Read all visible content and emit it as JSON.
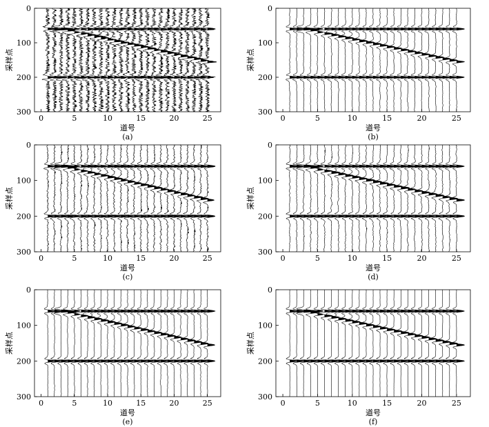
{
  "figure": {
    "panels": [
      {
        "caption": "(a)",
        "noise_level": 0.32,
        "smoothness": 0.15,
        "noise_seed": 11,
        "xlabel": "道号",
        "ylabel": "采样点"
      },
      {
        "caption": "(b)",
        "noise_level": 0.05,
        "smoothness": 0.85,
        "noise_seed": 23,
        "xlabel": "道号",
        "ylabel": "采样点"
      },
      {
        "caption": "(c)",
        "noise_level": 0.08,
        "smoothness": 0.7,
        "noise_seed": 37,
        "xlabel": "道号",
        "ylabel": "采样点"
      },
      {
        "caption": "(d)",
        "noise_level": 0.06,
        "smoothness": 0.8,
        "noise_seed": 41,
        "xlabel": "道号",
        "ylabel": "采样点"
      },
      {
        "caption": "(e)",
        "noise_level": 0.04,
        "smoothness": 0.85,
        "noise_seed": 53,
        "xlabel": "道号",
        "ylabel": "采样点"
      },
      {
        "caption": "(f)",
        "noise_level": 0.02,
        "smoothness": 0.9,
        "noise_seed": 67,
        "xlabel": "道号",
        "ylabel": "采样点"
      }
    ]
  },
  "chart_data": {
    "type": "seismic_wiggle",
    "xlabel": "道号",
    "ylabel": "采样点",
    "xlim": [
      -1,
      27
    ],
    "ylim": [
      0,
      300
    ],
    "x_ticks": [
      0,
      5,
      10,
      15,
      20,
      25
    ],
    "y_ticks": [
      0,
      100,
      200,
      300
    ],
    "traces": [
      1,
      2,
      3,
      4,
      5,
      6,
      7,
      8,
      9,
      10,
      11,
      12,
      13,
      14,
      15,
      16,
      17,
      18,
      19,
      20,
      21,
      22,
      23,
      24,
      25
    ],
    "events": [
      {
        "type": "horizontal",
        "sample": 60,
        "traces": [
          1,
          25
        ]
      },
      {
        "type": "dipping",
        "sample_start": 60,
        "sample_end": 155,
        "traces": [
          3,
          25
        ]
      },
      {
        "type": "horizontal",
        "sample": 200,
        "traces": [
          1,
          25
        ]
      }
    ]
  }
}
